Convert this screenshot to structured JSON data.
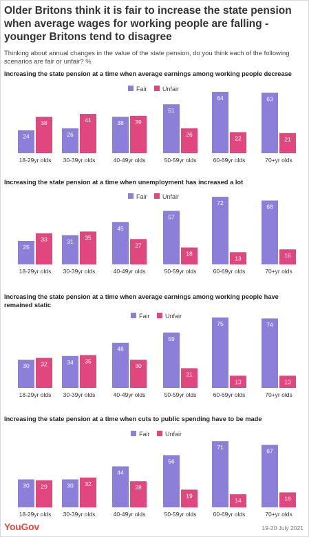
{
  "title": "Older Britons think it is fair to increase the state pension when average wages for working people are falling - younger Britons tend to disagree",
  "subtitle": "Thinking about annual changes in the value of the state pension, do you think each of the following scenarios are fair or unfair? %",
  "footer": {
    "brand": "YouGov",
    "date": "19-20 July 2021"
  },
  "colors": {
    "fair": "#8c7fd9",
    "unfair": "#e0477f"
  },
  "chart_data": [
    {
      "type": "bar",
      "title": "Increasing the state pension at a time when average earnings among working people decrease",
      "categories": [
        "18-29yr olds",
        "30-39yr olds",
        "40-49yr olds",
        "50-59yr olds",
        "60-69yr olds",
        "70+yr olds"
      ],
      "series": [
        {
          "name": "Fair",
          "values": [
            24,
            26,
            38,
            51,
            64,
            63
          ]
        },
        {
          "name": "Unfair",
          "values": [
            38,
            41,
            39,
            26,
            22,
            21
          ]
        }
      ],
      "legend": "top-right"
    },
    {
      "type": "bar",
      "title": "Increasing the state pension at a time when unemployment has increased a lot",
      "categories": [
        "18-29yr olds",
        "30-39yr olds",
        "40-49yr olds",
        "50-59yr olds",
        "60-69yr olds",
        "70+yr olds"
      ],
      "series": [
        {
          "name": "Fair",
          "values": [
            25,
            31,
            45,
            57,
            72,
            68
          ]
        },
        {
          "name": "Unfair",
          "values": [
            33,
            35,
            27,
            18,
            13,
            16
          ]
        }
      ],
      "legend": "top-right"
    },
    {
      "type": "bar",
      "title": "Increasing the state pension at a time when average earnings among working people have remained static",
      "categories": [
        "18-29yr olds",
        "30-39yr olds",
        "40-49yr olds",
        "50-59yr olds",
        "60-69yr olds",
        "70+yr olds"
      ],
      "series": [
        {
          "name": "Fair",
          "values": [
            30,
            34,
            48,
            59,
            75,
            74
          ]
        },
        {
          "name": "Unfair",
          "values": [
            32,
            35,
            30,
            21,
            13,
            13
          ]
        }
      ],
      "legend": "top-right"
    },
    {
      "type": "bar",
      "title": "Increasing the state pension at a time when cuts to public spending have to be made",
      "categories": [
        "18-29yr olds",
        "30-39yr olds",
        "40-49yr olds",
        "50-59yr olds",
        "60-69yr olds",
        "70+yr olds"
      ],
      "series": [
        {
          "name": "Fair",
          "values": [
            30,
            30,
            44,
            56,
            71,
            67
          ]
        },
        {
          "name": "Unfair",
          "values": [
            29,
            32,
            28,
            19,
            14,
            16
          ]
        }
      ],
      "legend": "top-right"
    }
  ]
}
